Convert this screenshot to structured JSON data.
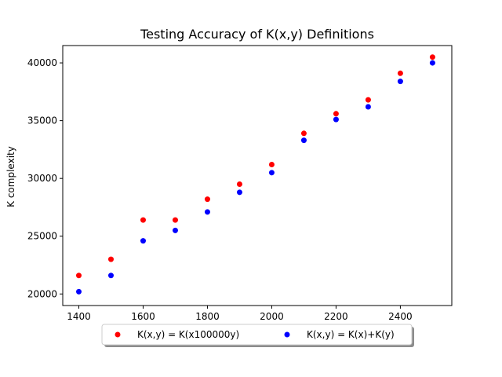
{
  "chart_data": {
    "type": "scatter",
    "title": "Testing Accuracy of K(x,y) Definitions",
    "xlabel": "",
    "ylabel": "K complexity",
    "xlim": [
      1350,
      2560
    ],
    "ylim": [
      19000,
      41500
    ],
    "xticks": [
      1400,
      1600,
      1800,
      2000,
      2200,
      2400
    ],
    "yticks": [
      20000,
      25000,
      30000,
      35000,
      40000
    ],
    "grid": false,
    "legend_position": "bottom-center",
    "x": [
      1400,
      1500,
      1600,
      1700,
      1800,
      1900,
      2000,
      2100,
      2200,
      2300,
      2400,
      2500
    ],
    "series": [
      {
        "name": "K(x,y) = K(x100000y)",
        "color": "#ff0000",
        "values": [
          21600,
          23000,
          26400,
          26400,
          28200,
          29500,
          31200,
          33900,
          35600,
          36800,
          39100,
          40500
        ]
      },
      {
        "name": "K(x,y) = K(x)+K(y)",
        "color": "#0000ff",
        "values": [
          20200,
          21600,
          24600,
          25500,
          27100,
          28800,
          30500,
          33300,
          35100,
          36200,
          38400,
          40000
        ]
      }
    ]
  }
}
